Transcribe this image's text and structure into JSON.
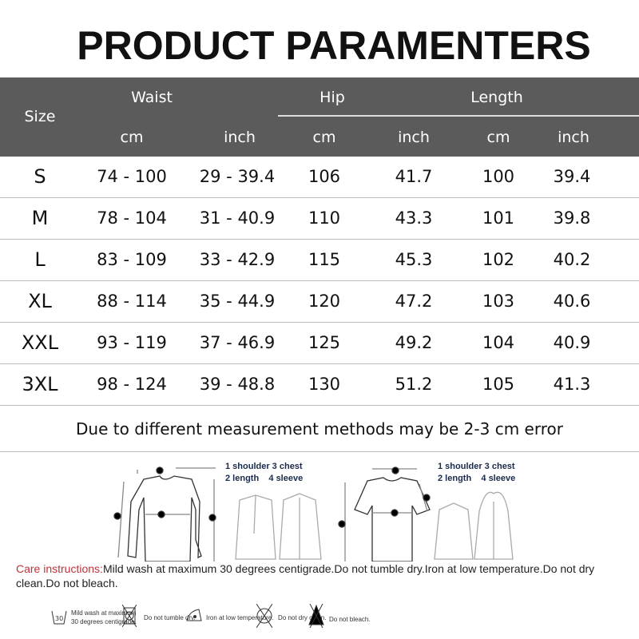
{
  "title": "PRODUCT PARAMENTERS",
  "header": {
    "size": "Size",
    "waist": "Waist",
    "hip": "Hip",
    "length": "Length",
    "units": [
      "cm",
      "inch",
      "cm",
      "inch",
      "cm",
      "inch"
    ]
  },
  "rows": [
    {
      "size": "S",
      "waist_cm": "74 - 100",
      "waist_inch": "29 - 39.4",
      "hip_cm": "106",
      "hip_inch": "41.7",
      "length_cm": "100",
      "length_inch": "39.4"
    },
    {
      "size": "M",
      "waist_cm": "78 - 104",
      "waist_inch": "31 - 40.9",
      "hip_cm": "110",
      "hip_inch": "43.3",
      "length_cm": "101",
      "length_inch": "39.8"
    },
    {
      "size": "L",
      "waist_cm": "83 - 109",
      "waist_inch": "33 - 42.9",
      "hip_cm": "115",
      "hip_inch": "45.3",
      "length_cm": "102",
      "length_inch": "40.2"
    },
    {
      "size": "XL",
      "waist_cm": "88 - 114",
      "waist_inch": "35 - 44.9",
      "hip_cm": "120",
      "hip_inch": "47.2",
      "length_cm": "103",
      "length_inch": "40.6"
    },
    {
      "size": "XXL",
      "waist_cm": "93 - 119",
      "waist_inch": "37 - 46.9",
      "hip_cm": "125",
      "hip_inch": "49.2",
      "length_cm": "104",
      "length_inch": "40.9"
    },
    {
      "size": "3XL",
      "waist_cm": "98 - 124",
      "waist_inch": "39 - 48.8",
      "hip_cm": "130",
      "hip_inch": "51.2",
      "length_cm": "105",
      "length_inch": "41.3"
    }
  ],
  "note": "Due to different measurement methods may be 2-3 cm error",
  "legend": {
    "line1": "1 shoulder 3 chest",
    "line2": "2 length    4 sleeve"
  },
  "care": {
    "label": "Care instructions:",
    "text": "Mild wash at maximum 30 degrees centigrade.Do not tumble dry.Iron at low temperature.Do not dry clean.Do not bleach."
  },
  "care_icons": [
    {
      "icon": "wash-30-icon",
      "num": "30",
      "text": "Mild wash at maximum 30 degrees centigrade."
    },
    {
      "icon": "no-tumble-dry-icon",
      "text": "Do not tumble dry."
    },
    {
      "icon": "iron-low-icon",
      "text": "Iron at low temperature."
    },
    {
      "icon": "no-dry-clean-icon",
      "text": "Do not dry clean."
    },
    {
      "icon": "no-bleach-icon",
      "text": "Do not bleach."
    }
  ],
  "colors": {
    "header_bg": "#5b5b5b",
    "care_label": "#c0303a"
  }
}
